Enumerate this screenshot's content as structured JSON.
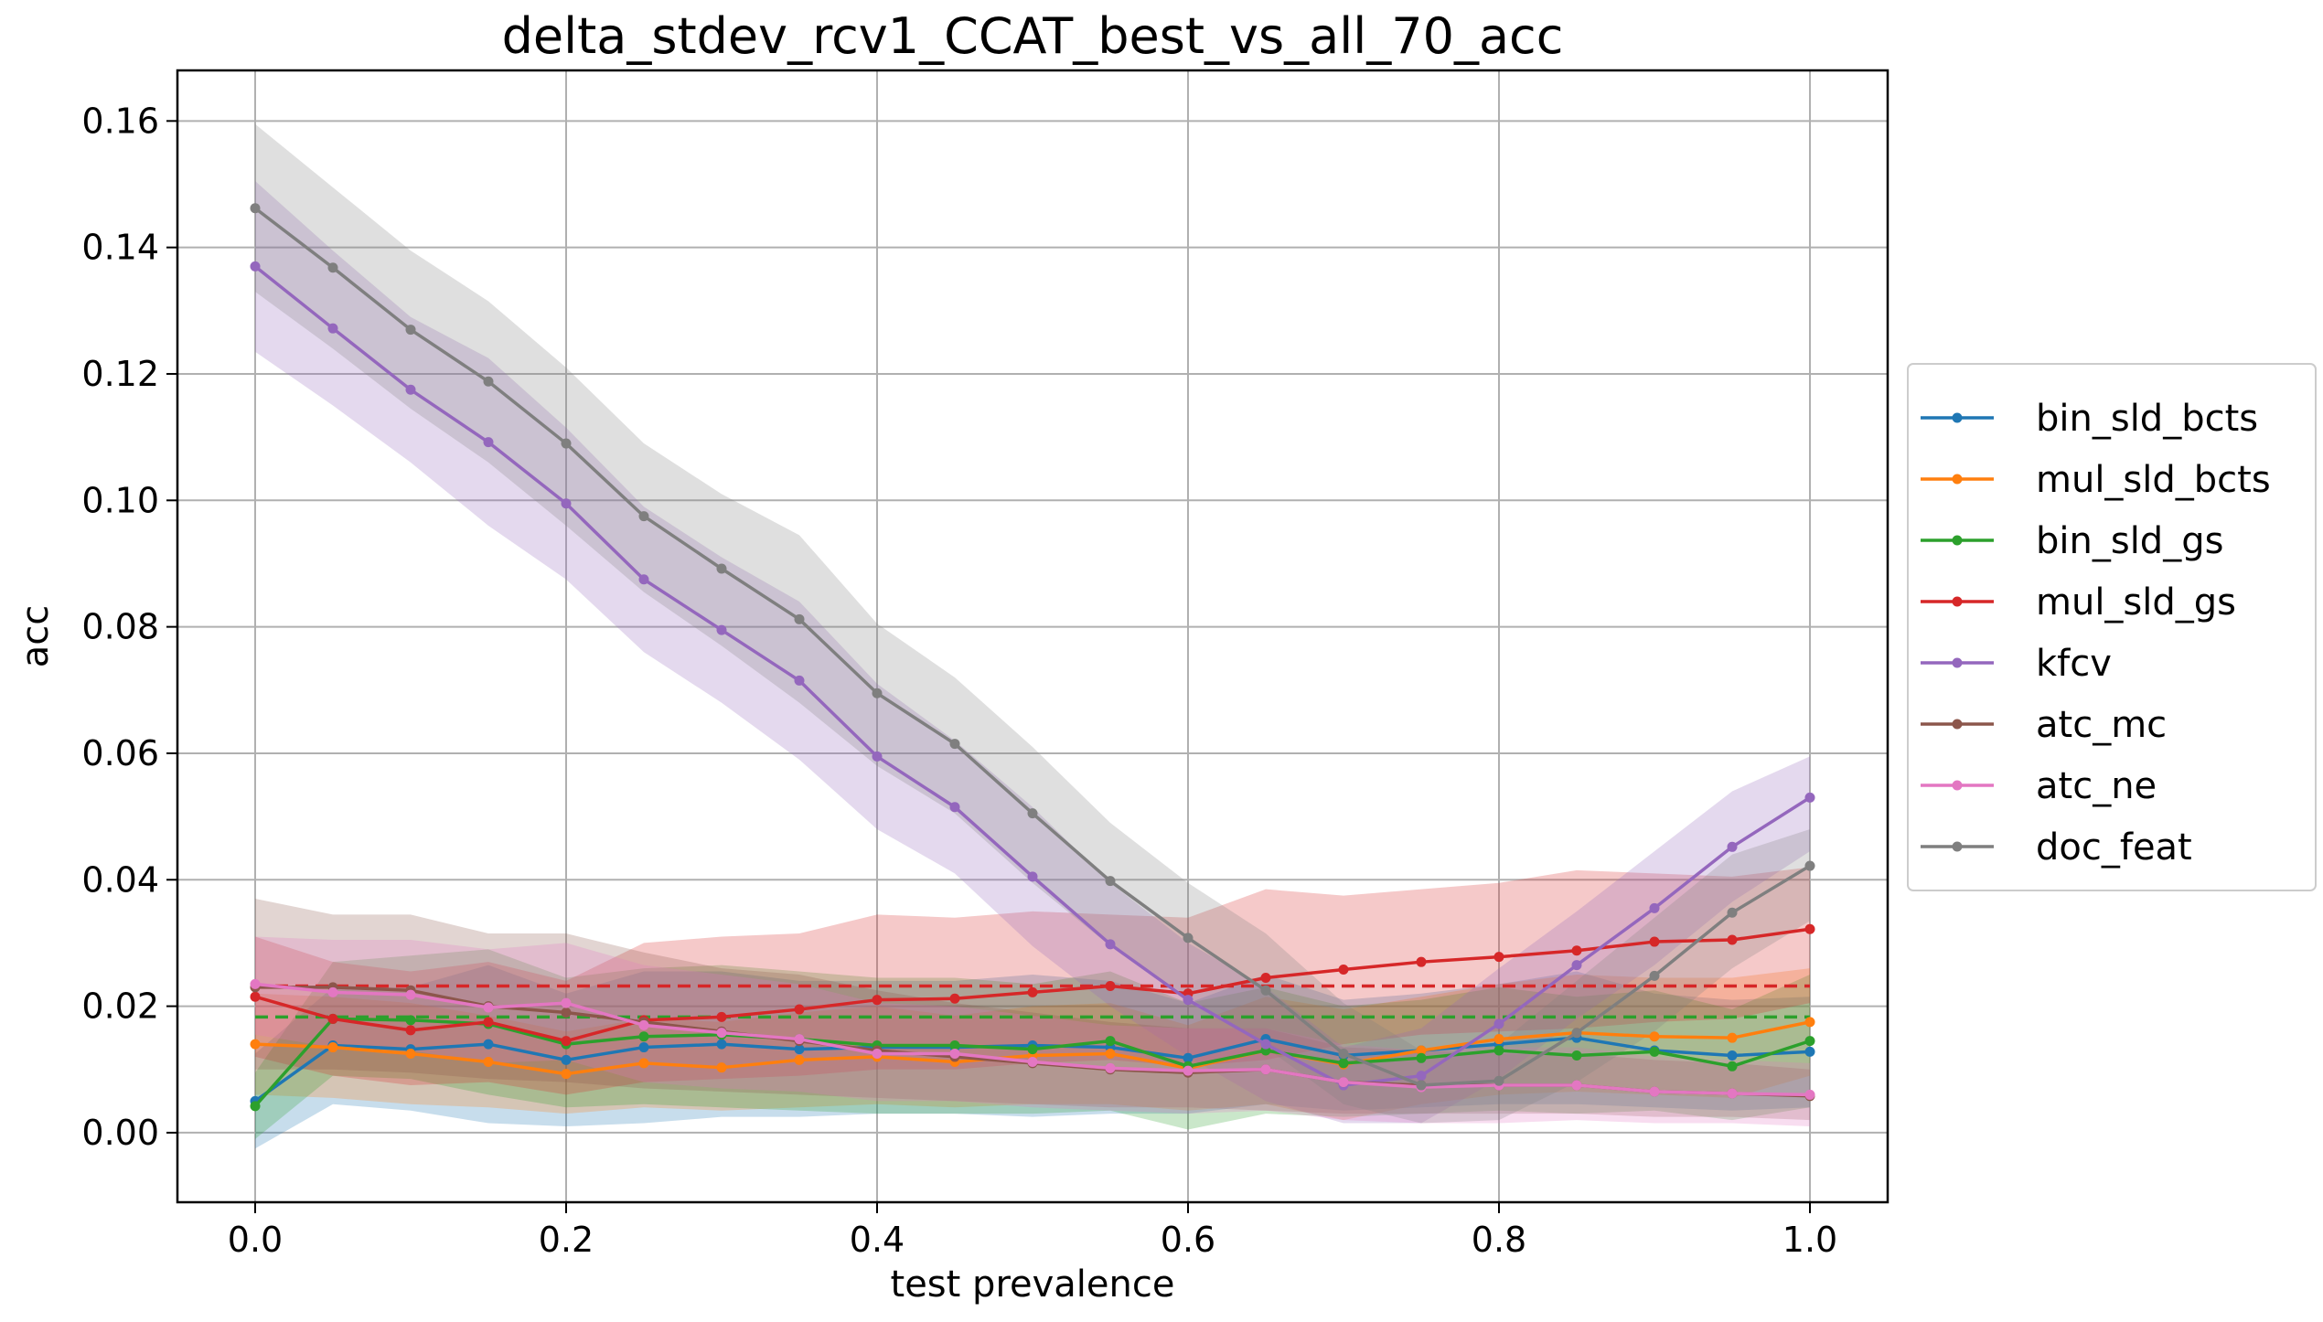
{
  "chart_data": {
    "type": "line",
    "title": "delta_stdev_rcv1_CCAT_best_vs_all_70_acc",
    "xlabel": "test prevalence",
    "ylabel": "acc",
    "xlim": [
      -0.05,
      1.05
    ],
    "ylim": [
      -0.011,
      0.168
    ],
    "x_ticks": [
      "0.0",
      "0.2",
      "0.4",
      "0.6",
      "0.8",
      "1.0"
    ],
    "y_ticks": [
      "0.00",
      "0.02",
      "0.04",
      "0.06",
      "0.08",
      "0.10",
      "0.12",
      "0.14",
      "0.16"
    ],
    "grid": true,
    "legend_position": "center-right outside",
    "x": [
      0.0,
      0.05,
      0.1,
      0.15,
      0.2,
      0.25,
      0.3,
      0.35,
      0.4,
      0.45,
      0.5,
      0.55,
      0.6,
      0.65,
      0.7,
      0.75,
      0.8,
      0.85,
      0.9,
      0.95,
      1.0
    ],
    "series": [
      {
        "name": "bin_sld_bcts",
        "color": "#1f77b4",
        "values": [
          0.005,
          0.0138,
          0.0132,
          0.014,
          0.0115,
          0.0135,
          0.014,
          0.0132,
          0.0135,
          0.0135,
          0.0138,
          0.0135,
          0.0118,
          0.0148,
          0.0122,
          0.013,
          0.014,
          0.015,
          0.013,
          0.0122,
          0.0128
        ],
        "lower": [
          -0.0025,
          0.0045,
          0.0035,
          0.0015,
          0.001,
          0.0015,
          0.0025,
          0.0025,
          0.003,
          0.003,
          0.0025,
          0.003,
          0.003,
          0.0045,
          0.0035,
          0.004,
          0.0045,
          0.0045,
          0.004,
          0.0035,
          0.004
        ],
        "upper": [
          0.0125,
          0.023,
          0.023,
          0.0265,
          0.022,
          0.0255,
          0.0255,
          0.024,
          0.024,
          0.024,
          0.025,
          0.024,
          0.0205,
          0.025,
          0.021,
          0.022,
          0.0235,
          0.0255,
          0.022,
          0.021,
          0.0215
        ]
      },
      {
        "name": "mul_sld_bcts",
        "color": "#ff7f0e",
        "values": [
          0.014,
          0.0135,
          0.0125,
          0.0112,
          0.0093,
          0.011,
          0.0103,
          0.0115,
          0.012,
          0.0112,
          0.0122,
          0.0125,
          0.0102,
          0.013,
          0.0108,
          0.013,
          0.0148,
          0.0158,
          0.0152,
          0.015,
          0.0175
        ],
        "lower": [
          0.006,
          0.0055,
          0.0045,
          0.004,
          0.003,
          0.004,
          0.0035,
          0.004,
          0.0045,
          0.004,
          0.0045,
          0.0045,
          0.0035,
          0.0045,
          0.002,
          0.0045,
          0.006,
          0.0065,
          0.006,
          0.0055,
          0.009
        ],
        "upper": [
          0.022,
          0.0215,
          0.0205,
          0.0185,
          0.016,
          0.018,
          0.0175,
          0.019,
          0.02,
          0.0185,
          0.02,
          0.0205,
          0.017,
          0.0215,
          0.0195,
          0.0215,
          0.0235,
          0.025,
          0.0245,
          0.0245,
          0.026
        ]
      },
      {
        "name": "bin_sld_gs",
        "color": "#2ca02c",
        "values": [
          0.0042,
          0.018,
          0.0178,
          0.0172,
          0.014,
          0.0152,
          0.0155,
          0.0148,
          0.0138,
          0.0138,
          0.0132,
          0.0145,
          0.0105,
          0.013,
          0.011,
          0.0118,
          0.013,
          0.0122,
          0.0128,
          0.0105,
          0.0145
        ],
        "lower": [
          -0.001,
          0.009,
          0.0085,
          0.006,
          0.004,
          0.0045,
          0.004,
          0.0035,
          0.003,
          0.003,
          0.003,
          0.0035,
          0.0005,
          0.003,
          0.0025,
          0.003,
          0.0035,
          0.003,
          0.0035,
          0.002,
          0.004
        ],
        "upper": [
          0.0095,
          0.027,
          0.028,
          0.029,
          0.0245,
          0.026,
          0.0265,
          0.0255,
          0.0245,
          0.0245,
          0.0235,
          0.0255,
          0.0205,
          0.023,
          0.02,
          0.021,
          0.023,
          0.0215,
          0.0225,
          0.0195,
          0.025
        ]
      },
      {
        "name": "mul_sld_gs",
        "color": "#d62728",
        "values": [
          0.0215,
          0.018,
          0.0162,
          0.0175,
          0.0145,
          0.0178,
          0.0183,
          0.0195,
          0.021,
          0.0212,
          0.0222,
          0.0232,
          0.022,
          0.0245,
          0.0258,
          0.027,
          0.0278,
          0.0288,
          0.0302,
          0.0305,
          0.0322
        ],
        "lower": [
          0.012,
          0.009,
          0.0075,
          0.008,
          0.006,
          0.008,
          0.0085,
          0.009,
          0.01,
          0.01,
          0.011,
          0.0115,
          0.0105,
          0.0115,
          0.014,
          0.0155,
          0.016,
          0.0165,
          0.0175,
          0.018,
          0.0205
        ],
        "upper": [
          0.031,
          0.027,
          0.0255,
          0.027,
          0.024,
          0.03,
          0.031,
          0.0315,
          0.0345,
          0.034,
          0.035,
          0.0345,
          0.034,
          0.0385,
          0.0375,
          0.0385,
          0.0395,
          0.0415,
          0.041,
          0.0405,
          0.042
        ]
      },
      {
        "name": "kfcv",
        "color": "#9467bd",
        "values": [
          0.137,
          0.1272,
          0.1175,
          0.1092,
          0.0995,
          0.0875,
          0.0795,
          0.0715,
          0.0595,
          0.0515,
          0.0405,
          0.0298,
          0.021,
          0.014,
          0.0075,
          0.009,
          0.0172,
          0.0265,
          0.0355,
          0.0452,
          0.053
        ],
        "lower": [
          0.1235,
          0.115,
          0.106,
          0.096,
          0.0875,
          0.076,
          0.068,
          0.059,
          0.048,
          0.041,
          0.0295,
          0.02,
          0.012,
          0.005,
          0.0015,
          0.0015,
          0.0085,
          0.018,
          0.0265,
          0.0365,
          0.0445
        ],
        "upper": [
          0.1505,
          0.1395,
          0.129,
          0.1225,
          0.1115,
          0.099,
          0.091,
          0.084,
          0.071,
          0.062,
          0.0515,
          0.0395,
          0.03,
          0.023,
          0.0135,
          0.0165,
          0.026,
          0.035,
          0.0445,
          0.054,
          0.0595
        ]
      },
      {
        "name": "atc_mc",
        "color": "#8c564b",
        "values": [
          0.023,
          0.023,
          0.0225,
          0.02,
          0.019,
          0.0175,
          0.016,
          0.0145,
          0.013,
          0.012,
          0.011,
          0.01,
          0.0095,
          0.01,
          0.008,
          0.0075,
          0.0075,
          0.0075,
          0.0065,
          0.0062,
          0.0058
        ],
        "lower": [
          0.01,
          0.01,
          0.0095,
          0.0085,
          0.008,
          0.007,
          0.0065,
          0.006,
          0.0055,
          0.005,
          0.0045,
          0.004,
          0.004,
          0.0035,
          0.003,
          0.003,
          0.003,
          0.003,
          0.0025,
          0.0025,
          0.002
        ],
        "upper": [
          0.037,
          0.0345,
          0.0345,
          0.0315,
          0.0315,
          0.0285,
          0.026,
          0.025,
          0.0225,
          0.0205,
          0.019,
          0.0175,
          0.0165,
          0.0165,
          0.0135,
          0.013,
          0.0125,
          0.0125,
          0.0115,
          0.011,
          0.01
        ]
      },
      {
        "name": "atc_ne",
        "color": "#e377c2",
        "values": [
          0.0235,
          0.0222,
          0.0218,
          0.0198,
          0.0205,
          0.017,
          0.0158,
          0.0148,
          0.0125,
          0.0125,
          0.0112,
          0.0102,
          0.0098,
          0.01,
          0.008,
          0.0072,
          0.0075,
          0.0075,
          0.0065,
          0.0062,
          0.006
        ],
        "lower": [
          0.0155,
          0.0135,
          0.013,
          0.011,
          0.0115,
          0.008,
          0.007,
          0.0065,
          0.005,
          0.005,
          0.004,
          0.0035,
          0.003,
          0.0035,
          0.002,
          0.0015,
          0.0015,
          0.002,
          0.0015,
          0.0015,
          0.001
        ],
        "upper": [
          0.031,
          0.0305,
          0.0305,
          0.029,
          0.03,
          0.0265,
          0.025,
          0.0235,
          0.0205,
          0.02,
          0.0185,
          0.017,
          0.0165,
          0.0165,
          0.014,
          0.013,
          0.0135,
          0.0135,
          0.012,
          0.0115,
          0.011
        ]
      },
      {
        "name": "doc_feat",
        "color": "#7f7f7f",
        "values": [
          0.1462,
          0.1368,
          0.127,
          0.1188,
          0.109,
          0.0975,
          0.0892,
          0.0812,
          0.0695,
          0.0615,
          0.0505,
          0.0398,
          0.0308,
          0.0225,
          0.0125,
          0.0075,
          0.0082,
          0.0158,
          0.0248,
          0.0348,
          0.0422
        ],
        "lower": [
          0.133,
          0.124,
          0.1145,
          0.106,
          0.096,
          0.0855,
          0.077,
          0.068,
          0.058,
          0.0505,
          0.0395,
          0.0295,
          0.0215,
          0.0135,
          0.0045,
          0.0015,
          0.002,
          0.008,
          0.016,
          0.026,
          0.0335
        ],
        "upper": [
          0.1595,
          0.1495,
          0.1395,
          0.1315,
          0.121,
          0.109,
          0.101,
          0.0945,
          0.0805,
          0.072,
          0.061,
          0.049,
          0.0395,
          0.0315,
          0.0205,
          0.013,
          0.014,
          0.024,
          0.034,
          0.044,
          0.048
        ]
      }
    ],
    "reference_lines": [
      {
        "series": "mul_sld_gs",
        "style": "dashed",
        "y": 0.0232,
        "color": "#d62728"
      },
      {
        "series": "bin_sld_gs",
        "style": "dashed",
        "y": 0.0183,
        "color": "#2ca02c"
      }
    ]
  }
}
